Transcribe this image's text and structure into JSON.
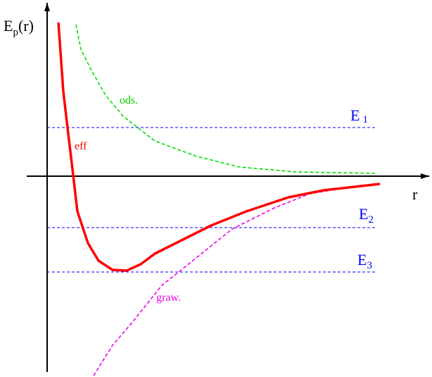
{
  "axis_y_label": {
    "main": "E",
    "sub": "p",
    "rest": "(r)"
  },
  "axis_x_label": "r",
  "curves": {
    "centrifugal": "ods.",
    "effective": "eff",
    "gravitational": "graw."
  },
  "levels": [
    {
      "symbol": "E",
      "index": "1"
    },
    {
      "symbol": "E",
      "index": "2"
    },
    {
      "symbol": "E",
      "index": "3"
    }
  ]
}
